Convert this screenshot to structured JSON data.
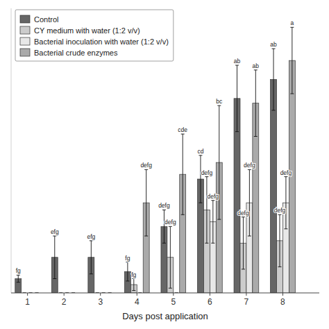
{
  "chart_data": {
    "type": "bar",
    "xlabel": "Days post application",
    "x": [
      1,
      2,
      3,
      4,
      5,
      6,
      7,
      8
    ],
    "xlim": [
      0.55,
      9.0
    ],
    "xticks": [
      1,
      2,
      3,
      4,
      5,
      6,
      7,
      8
    ],
    "ylim": [
      0,
      12
    ],
    "tick_labels": "x",
    "grid": false,
    "legend": "upper left",
    "series": [
      {
        "name": "Control",
        "color": "#666666",
        "values": [
          0.6,
          1.5,
          1.5,
          0.9,
          2.8,
          4.8,
          8.2,
          9.0
        ],
        "errors": [
          0.15,
          0.9,
          0.7,
          0.4,
          0.7,
          1.0,
          1.4,
          1.3
        ],
        "letters": [
          "fg",
          "efg",
          "efg",
          "fg",
          "defg",
          "cd",
          "ab",
          "ab"
        ]
      },
      {
        "name": "CY medium with water (1:2 v/v)",
        "color": "#cccccc",
        "values": [
          0.0,
          0.0,
          0.0,
          0.35,
          1.5,
          3.5,
          2.1,
          2.2
        ],
        "errors": [
          0.0,
          0.0,
          0.0,
          0.25,
          1.3,
          1.4,
          1.1,
          1.1
        ],
        "letters": [
          null,
          null,
          null,
          "fg",
          "defg",
          "defg",
          "defg",
          "defg"
        ]
      },
      {
        "name": "Bacterial inoculation with water (1:2 v/v)",
        "color": "#e8e8e8",
        "values": [
          0.0,
          0.0,
          0.0,
          0.0,
          0.0,
          3.0,
          3.8,
          3.8
        ],
        "errors": [
          0.0,
          0.0,
          0.0,
          0.0,
          0.0,
          0.9,
          1.4,
          1.1
        ],
        "letters": [
          null,
          null,
          null,
          null,
          null,
          "defg",
          "defg",
          "defg"
        ]
      },
      {
        "name": "Bacterial crude enzymes",
        "color": "#aaaaaa",
        "values": [
          0.0,
          0.0,
          0.0,
          3.8,
          5.0,
          5.5,
          8.0,
          9.8
        ],
        "errors": [
          0.0,
          0.0,
          0.0,
          1.4,
          1.7,
          2.4,
          1.4,
          1.4
        ],
        "letters": [
          null,
          null,
          null,
          "defg",
          "cde",
          "bc",
          "ab",
          "a"
        ]
      }
    ]
  }
}
